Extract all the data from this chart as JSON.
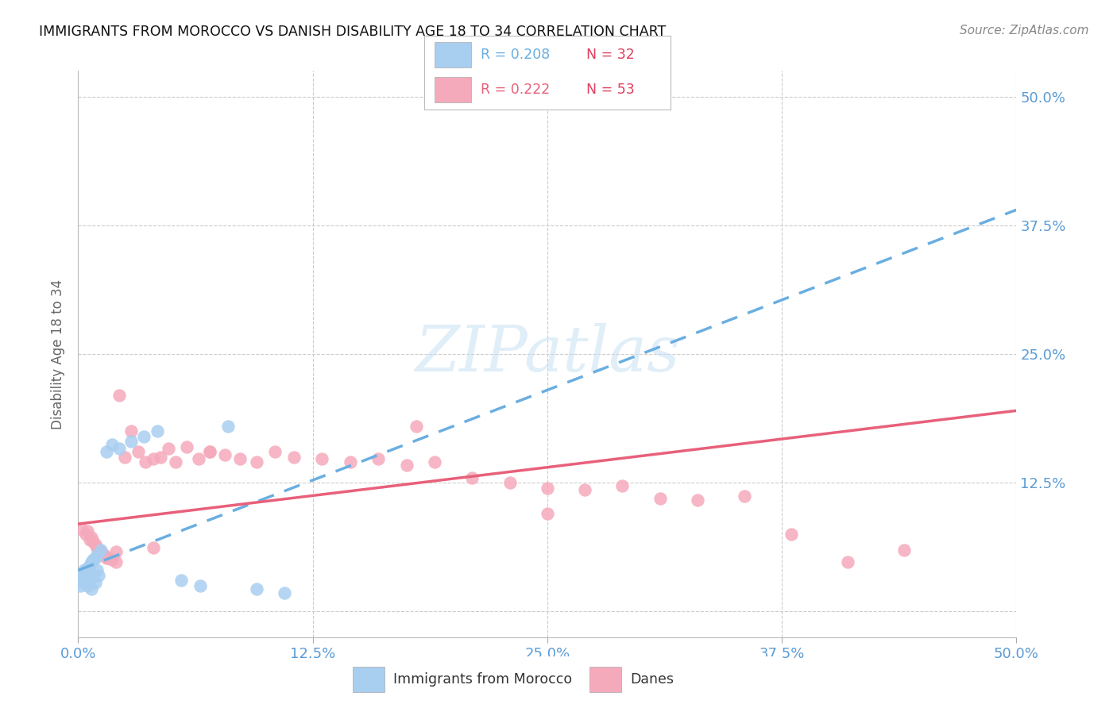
{
  "title": "IMMIGRANTS FROM MOROCCO VS DANISH DISABILITY AGE 18 TO 34 CORRELATION CHART",
  "source": "Source: ZipAtlas.com",
  "ylabel": "Disability Age 18 to 34",
  "xlim": [
    0.0,
    0.5
  ],
  "ylim": [
    -0.025,
    0.525
  ],
  "morocco_color": "#a8cef0",
  "danes_color": "#f5aabb",
  "morocco_line_color": "#6aaee0",
  "danes_line_color": "#e8607a",
  "background_color": "#ffffff",
  "title_color": "#111111",
  "tick_label_color": "#5b9bd5",
  "R1": "0.208",
  "N1": "32",
  "R2": "0.222",
  "N2": "53",
  "morocco_x": [
    0.001,
    0.002,
    0.002,
    0.003,
    0.003,
    0.004,
    0.004,
    0.005,
    0.005,
    0.006,
    0.006,
    0.007,
    0.007,
    0.008,
    0.008,
    0.009,
    0.009,
    0.01,
    0.01,
    0.011,
    0.012,
    0.015,
    0.018,
    0.022,
    0.028,
    0.035,
    0.042,
    0.055,
    0.065,
    0.08,
    0.095,
    0.11
  ],
  "morocco_y": [
    0.025,
    0.03,
    0.035,
    0.028,
    0.04,
    0.032,
    0.038,
    0.025,
    0.042,
    0.03,
    0.045,
    0.022,
    0.048,
    0.035,
    0.05,
    0.028,
    0.052,
    0.04,
    0.055,
    0.035,
    0.06,
    0.155,
    0.162,
    0.158,
    0.165,
    0.17,
    0.175,
    0.03,
    0.025,
    0.18,
    0.022,
    0.018
  ],
  "danes_x": [
    0.002,
    0.004,
    0.005,
    0.006,
    0.007,
    0.008,
    0.009,
    0.01,
    0.011,
    0.012,
    0.014,
    0.016,
    0.018,
    0.02,
    0.022,
    0.025,
    0.028,
    0.032,
    0.036,
    0.04,
    0.044,
    0.048,
    0.052,
    0.058,
    0.064,
    0.07,
    0.078,
    0.086,
    0.095,
    0.105,
    0.115,
    0.13,
    0.145,
    0.16,
    0.175,
    0.19,
    0.21,
    0.23,
    0.25,
    0.27,
    0.29,
    0.31,
    0.33,
    0.355,
    0.25,
    0.18,
    0.07,
    0.04,
    0.02,
    0.015,
    0.38,
    0.41,
    0.44
  ],
  "danes_y": [
    0.08,
    0.075,
    0.078,
    0.07,
    0.072,
    0.068,
    0.065,
    0.062,
    0.06,
    0.058,
    0.055,
    0.052,
    0.05,
    0.048,
    0.21,
    0.15,
    0.175,
    0.155,
    0.145,
    0.148,
    0.15,
    0.158,
    0.145,
    0.16,
    0.148,
    0.155,
    0.152,
    0.148,
    0.145,
    0.155,
    0.15,
    0.148,
    0.145,
    0.148,
    0.142,
    0.145,
    0.13,
    0.125,
    0.12,
    0.118,
    0.122,
    0.11,
    0.108,
    0.112,
    0.095,
    0.18,
    0.155,
    0.062,
    0.058,
    0.052,
    0.075,
    0.048,
    0.06
  ],
  "morocco_trend_x": [
    0.0,
    0.5
  ],
  "morocco_trend_y": [
    0.04,
    0.39
  ],
  "danes_trend_x": [
    0.0,
    0.5
  ],
  "danes_trend_y": [
    0.085,
    0.195
  ],
  "xtick_pos": [
    0.0,
    0.125,
    0.25,
    0.375,
    0.5
  ],
  "xtick_labels": [
    "0.0%",
    "12.5%",
    "25.0%",
    "37.5%",
    "50.0%"
  ],
  "ytick_pos": [
    0.0,
    0.125,
    0.25,
    0.375,
    0.5
  ],
  "right_ytick_labels": [
    "12.5%",
    "25.0%",
    "37.5%",
    "50.0%"
  ],
  "right_ytick_pos": [
    0.125,
    0.25,
    0.375,
    0.5
  ]
}
